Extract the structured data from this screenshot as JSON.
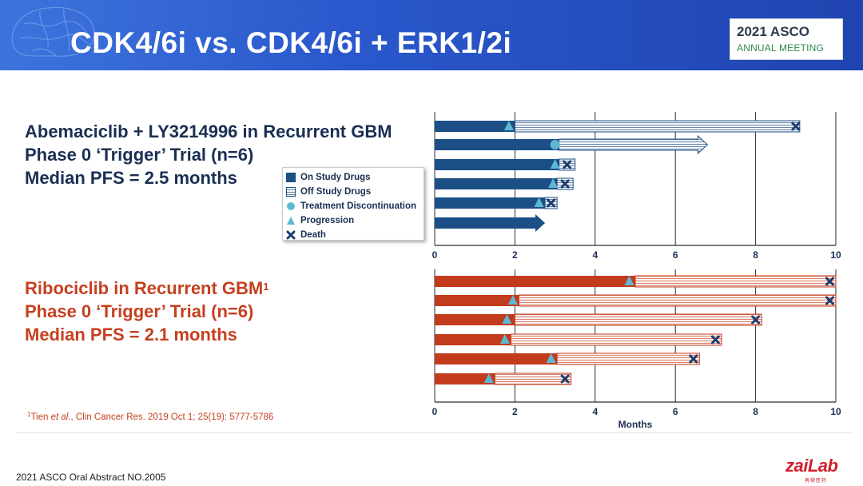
{
  "header": {
    "title": "CDK4/6i vs. CDK4/6i + ERK1/2i"
  },
  "logo": {
    "top": "2021 ASCO",
    "bottom": "ANNUAL MEETING"
  },
  "study1": {
    "lines": [
      "Abemaciclib + LY3214996 in Recurrent GBM",
      "Phase 0 ‘Trigger’ Trial (n=6)",
      "Median PFS = 2.5 months"
    ]
  },
  "study2": {
    "line1": "Ribociclib in Recurrent GBM",
    "sup": "1",
    "line2": "Phase 0 ‘Trigger’ Trial (n=6)",
    "line3": "Median PFS = 2.1 months"
  },
  "legend": {
    "items": [
      "On Study Drugs",
      "Off Study Drugs",
      "Treatment Discontinuation",
      "Progression",
      "Death"
    ]
  },
  "footnote": {
    "sup": "1",
    "author": "Tien ",
    "etal": "et al.",
    "rest": ", Clin Cancer Res. 2019 Oct 1; 25(19): 5777-5786"
  },
  "footer": {
    "text": "2021 ASCO Oral Abstract NO.2005"
  },
  "brand": {
    "name": "zaiLab",
    "sub": "再鼎医药"
  },
  "colors": {
    "on_study_top": "#1b4f86",
    "on_study_bottom": "#c23b1c",
    "marker": "#5fb8d3",
    "death": "#1c3c6e"
  },
  "chart_data": [
    {
      "type": "swimmer",
      "xlim": [
        0,
        10
      ],
      "xticks": [
        "0",
        "2",
        "4",
        "6",
        "8",
        "10"
      ],
      "xlabel": "",
      "patients": [
        {
          "on": 2.0,
          "end": 9.1,
          "progression": 1.85,
          "death": 9.0
        },
        {
          "on": 3.1,
          "end": 6.8,
          "discontinuation": 3.0,
          "ongoing": true
        },
        {
          "on": 3.1,
          "end": 3.5,
          "progression": 3.0,
          "death": 3.3
        },
        {
          "on": 3.05,
          "end": 3.45,
          "progression": 2.95,
          "death": 3.25
        },
        {
          "on": 2.75,
          "end": 3.05,
          "progression": 2.6,
          "death": 2.9
        },
        {
          "on": 2.75,
          "ongoing": true
        }
      ]
    },
    {
      "type": "swimmer",
      "xlim": [
        0,
        10
      ],
      "xticks": [
        "0",
        "2",
        "4",
        "6",
        "8",
        "10"
      ],
      "xlabel": "Months",
      "patients": [
        {
          "on": 5.0,
          "end": 10.0,
          "progression": 4.85,
          "death": 9.85
        },
        {
          "on": 2.1,
          "end": 10.0,
          "progression": 1.95,
          "death": 9.85
        },
        {
          "on": 2.0,
          "end": 8.15,
          "progression": 1.8,
          "death": 8.0
        },
        {
          "on": 1.9,
          "end": 7.15,
          "progression": 1.75,
          "death": 7.0
        },
        {
          "on": 3.05,
          "end": 6.6,
          "progression": 2.9,
          "death": 6.45
        },
        {
          "on": 1.5,
          "end": 3.4,
          "progression": 1.35,
          "death": 3.25
        }
      ]
    }
  ]
}
